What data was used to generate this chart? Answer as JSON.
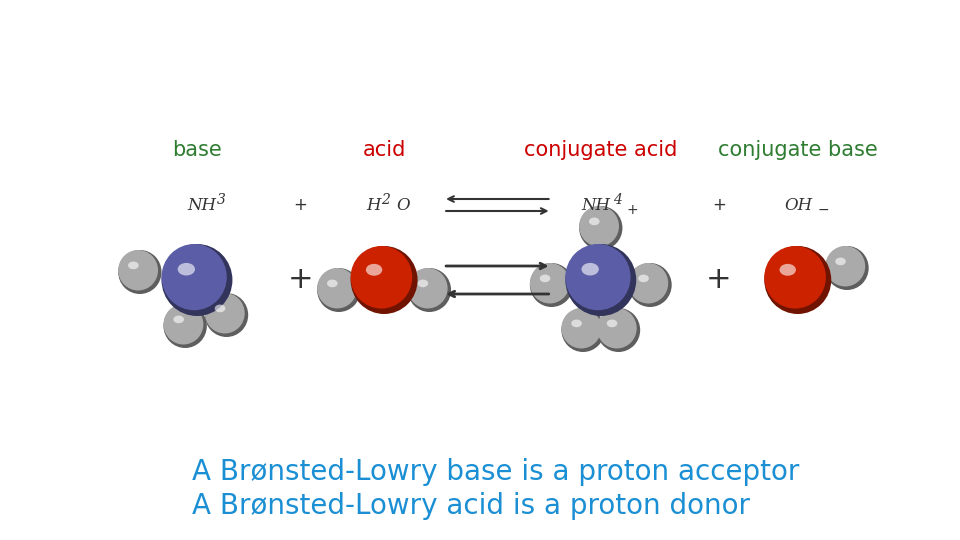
{
  "title_line1": "A Brønsted-Lowry acid is a proton donor",
  "title_line2": "A Brønsted-Lowry base is a proton acceptor",
  "title_color": "#1B8FD4",
  "title_fontsize": 20,
  "bg_color": "#FFFFFF",
  "label_base": "base",
  "label_acid": "acid",
  "label_conj_acid": "conjugate acid",
  "label_conj_base": "conjugate base",
  "label_base_color": "#2E7D32",
  "label_acid_color": "#CC0000",
  "label_conj_acid_color": "#CC0000",
  "label_conj_base_color": "#2E7D32",
  "label_fontsize": 15,
  "formula_fontsize": 12,
  "N_color": "#5B5EA6",
  "O_color": "#CC2200",
  "H_color": "#AAAAAA"
}
